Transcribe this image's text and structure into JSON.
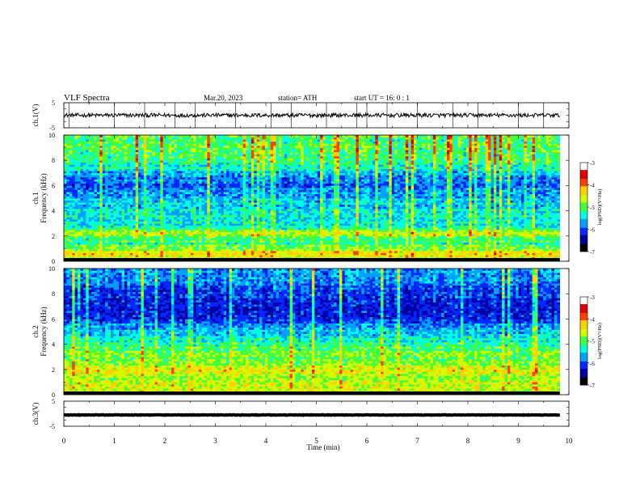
{
  "header": {
    "title": "VLF  Spectra",
    "date": "Mar.20, 2023",
    "station": "station= ATH",
    "start": "start  UT  =    16: 0   : 1"
  },
  "colors": {
    "colormap": [
      "#000000",
      "#0000a0",
      "#0028ff",
      "#00a0ff",
      "#00ffe0",
      "#40ff40",
      "#d0ff00",
      "#ffd000",
      "#ff4000",
      "#e00000",
      "#ffffff"
    ],
    "trace": "#000000",
    "frame": "#000000"
  },
  "chart_data": [
    {
      "type": "line",
      "name": "ch1-waveform",
      "ylabel": "ch.1(V)",
      "ylim": [
        -5,
        5
      ],
      "yticks": [
        "5",
        "-5"
      ],
      "xlim": [
        0,
        10
      ],
      "level": 0,
      "noise_amplitude": 0.8,
      "spike_times": [
        0.1,
        1.0,
        1.6,
        2.2,
        2.6,
        3.4,
        4.1,
        4.5,
        5.2,
        5.8,
        6.0,
        6.4,
        7.0,
        7.7,
        8.2,
        9.0,
        9.5
      ]
    },
    {
      "type": "heatmap",
      "name": "ch1-spectrogram",
      "ylabel": "ch.1\nFrequency  (kHz)",
      "ylim": [
        0,
        10
      ],
      "yticks": [
        "0",
        "2",
        "4",
        "6",
        "8",
        "10"
      ],
      "xlim": [
        0,
        9.82
      ],
      "colorbar": {
        "label": "log(PSD)(V²/Hz)",
        "range": [
          -7,
          -3
        ],
        "ticks": [
          "-3",
          "-4",
          "-5",
          "-6",
          "-7"
        ]
      },
      "band_profile": [
        {
          "f": 0.0,
          "v": -5.0
        },
        {
          "f": 0.3,
          "v": -4.6
        },
        {
          "f": 0.6,
          "v": -4.2
        },
        {
          "f": 1.0,
          "v": -4.8
        },
        {
          "f": 1.5,
          "v": -5.2
        },
        {
          "f": 2.0,
          "v": -4.9
        },
        {
          "f": 2.3,
          "v": -4.5
        },
        {
          "f": 2.6,
          "v": -5.4
        },
        {
          "f": 3.5,
          "v": -5.5
        },
        {
          "f": 4.5,
          "v": -5.6
        },
        {
          "f": 5.5,
          "v": -6.0
        },
        {
          "f": 6.5,
          "v": -6.1
        },
        {
          "f": 7.5,
          "v": -5.4
        },
        {
          "f": 8.5,
          "v": -5.1
        },
        {
          "f": 10.0,
          "v": -4.9
        }
      ]
    },
    {
      "type": "heatmap",
      "name": "ch2-spectrogram",
      "ylabel": "ch.2\nFrequency  (kHz)",
      "ylim": [
        0,
        10
      ],
      "yticks": [
        "0",
        "2",
        "4",
        "6",
        "8",
        "10"
      ],
      "xlim": [
        0,
        9.82
      ],
      "colorbar": {
        "label": "log(PSD)(V²/Hz)",
        "range": [
          -7,
          -3
        ],
        "ticks": [
          "-3",
          "-4",
          "-5",
          "-6",
          "-7"
        ]
      },
      "band_profile": [
        {
          "f": 0.0,
          "v": -5.0
        },
        {
          "f": 0.5,
          "v": -4.4
        },
        {
          "f": 1.0,
          "v": -4.6
        },
        {
          "f": 1.5,
          "v": -4.7
        },
        {
          "f": 2.0,
          "v": -4.3
        },
        {
          "f": 2.5,
          "v": -4.8
        },
        {
          "f": 3.5,
          "v": -5.0
        },
        {
          "f": 4.5,
          "v": -5.5
        },
        {
          "f": 5.5,
          "v": -6.0
        },
        {
          "f": 6.5,
          "v": -6.6
        },
        {
          "f": 7.5,
          "v": -6.5
        },
        {
          "f": 8.5,
          "v": -6.2
        },
        {
          "f": 10.0,
          "v": -5.8
        }
      ]
    },
    {
      "type": "line",
      "name": "ch3-waveform",
      "ylabel": "ch.3(V)",
      "ylim": [
        -5,
        5
      ],
      "yticks": [
        "5",
        "-5"
      ],
      "xlim": [
        0,
        10
      ],
      "level": -0.5,
      "noise_amplitude": 0.1,
      "spike_times": []
    }
  ],
  "xaxis": {
    "label": "Time  (min)",
    "ticks": [
      "0",
      "1",
      "2",
      "3",
      "4",
      "5",
      "6",
      "7",
      "8",
      "9",
      "10"
    ]
  }
}
